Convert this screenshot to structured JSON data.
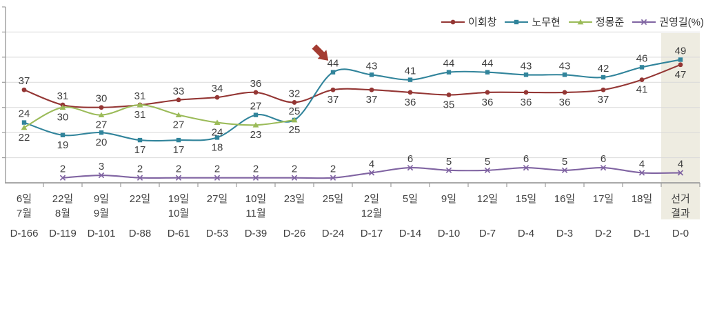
{
  "chart_data": {
    "type": "line",
    "title": "",
    "unit": "%",
    "legend_position": "top-right",
    "grid": true,
    "ylim": [
      0,
      70
    ],
    "ytick_interval": 10,
    "categories": [
      {
        "day": "6일",
        "month": "7월",
        "dday": "D-166",
        "highlight": false
      },
      {
        "day": "22일",
        "month": "8월",
        "dday": "D-119",
        "highlight": false
      },
      {
        "day": "9일",
        "month": "9월",
        "dday": "D-101",
        "highlight": false
      },
      {
        "day": "22일",
        "month": "",
        "dday": "D-88",
        "highlight": false
      },
      {
        "day": "19일",
        "month": "10월",
        "dday": "D-61",
        "highlight": false
      },
      {
        "day": "27일",
        "month": "",
        "dday": "D-53",
        "highlight": false
      },
      {
        "day": "10일",
        "month": "11월",
        "dday": "D-39",
        "highlight": false
      },
      {
        "day": "23일",
        "month": "",
        "dday": "D-26",
        "highlight": false
      },
      {
        "day": "25일",
        "month": "",
        "dday": "D-24",
        "highlight": false
      },
      {
        "day": "2일",
        "month": "12월",
        "dday": "D-17",
        "highlight": false
      },
      {
        "day": "5일",
        "month": "",
        "dday": "D-14",
        "highlight": false
      },
      {
        "day": "9일",
        "month": "",
        "dday": "D-10",
        "highlight": false
      },
      {
        "day": "12일",
        "month": "",
        "dday": "D-7",
        "highlight": false
      },
      {
        "day": "15일",
        "month": "",
        "dday": "D-4",
        "highlight": false
      },
      {
        "day": "16일",
        "month": "",
        "dday": "D-3",
        "highlight": false
      },
      {
        "day": "17일",
        "month": "",
        "dday": "D-2",
        "highlight": false
      },
      {
        "day": "18일",
        "month": "",
        "dday": "D-1",
        "highlight": false
      },
      {
        "day": "선거",
        "month": "결과",
        "dday": "D-0",
        "highlight": true
      }
    ],
    "series": [
      {
        "name": "이회창",
        "color": "#943634",
        "marker": "circle",
        "values": [
          37,
          31,
          30,
          31,
          33,
          34,
          36,
          32,
          37,
          37,
          36,
          35,
          36,
          36,
          36,
          37,
          41,
          47
        ],
        "label_side": [
          "above",
          "above",
          "above",
          "above",
          "above",
          "above",
          "above",
          "above",
          "below",
          "below",
          "below",
          "below",
          "below",
          "below",
          "below",
          "below",
          "below",
          "below"
        ]
      },
      {
        "name": "노무현",
        "color": "#31849B",
        "marker": "square",
        "values": [
          24,
          19,
          20,
          17,
          17,
          18,
          27,
          25,
          44,
          43,
          41,
          44,
          44,
          43,
          43,
          42,
          46,
          49
        ],
        "label_side": [
          "above",
          "below",
          "below",
          "below",
          "below",
          "below",
          "above",
          "above",
          "above",
          "above",
          "above",
          "above",
          "above",
          "above",
          "above",
          "above",
          "above",
          "above"
        ]
      },
      {
        "name": "정몽준",
        "color": "#9BBB59",
        "marker": "triangle",
        "values": [
          22,
          30,
          27,
          31,
          27,
          24,
          23,
          25,
          null,
          null,
          null,
          null,
          null,
          null,
          null,
          null,
          null,
          null
        ],
        "label_side": [
          "below",
          "below",
          "below",
          "below",
          "below",
          "below",
          "below",
          "below",
          "below",
          "below",
          "below",
          "below",
          "below",
          "below",
          "below",
          "below",
          "below",
          "below"
        ]
      },
      {
        "name": "권영길(%)",
        "color": "#8064A2",
        "marker": "x",
        "values": [
          null,
          2,
          3,
          2,
          2,
          2,
          2,
          2,
          2,
          4,
          6,
          5,
          5,
          6,
          5,
          6,
          4,
          4
        ],
        "label_side": [
          "above",
          "above",
          "above",
          "above",
          "above",
          "above",
          "above",
          "above",
          "above",
          "above",
          "above",
          "above",
          "above",
          "above",
          "above",
          "above",
          "above",
          "above"
        ]
      }
    ],
    "arrow": {
      "shape": "block-arrow",
      "direction": "down-right",
      "color": "#A43B31",
      "target": {
        "series": "노무현",
        "category_index": 8,
        "value": 44
      }
    },
    "colors": {
      "grid": "#D9D9D9",
      "axis": "#9C9C9C",
      "data_label": "#3F3F3F",
      "axis_label": "#404040",
      "highlight_band": "#EEECE1",
      "legend_text": "#333333"
    }
  }
}
